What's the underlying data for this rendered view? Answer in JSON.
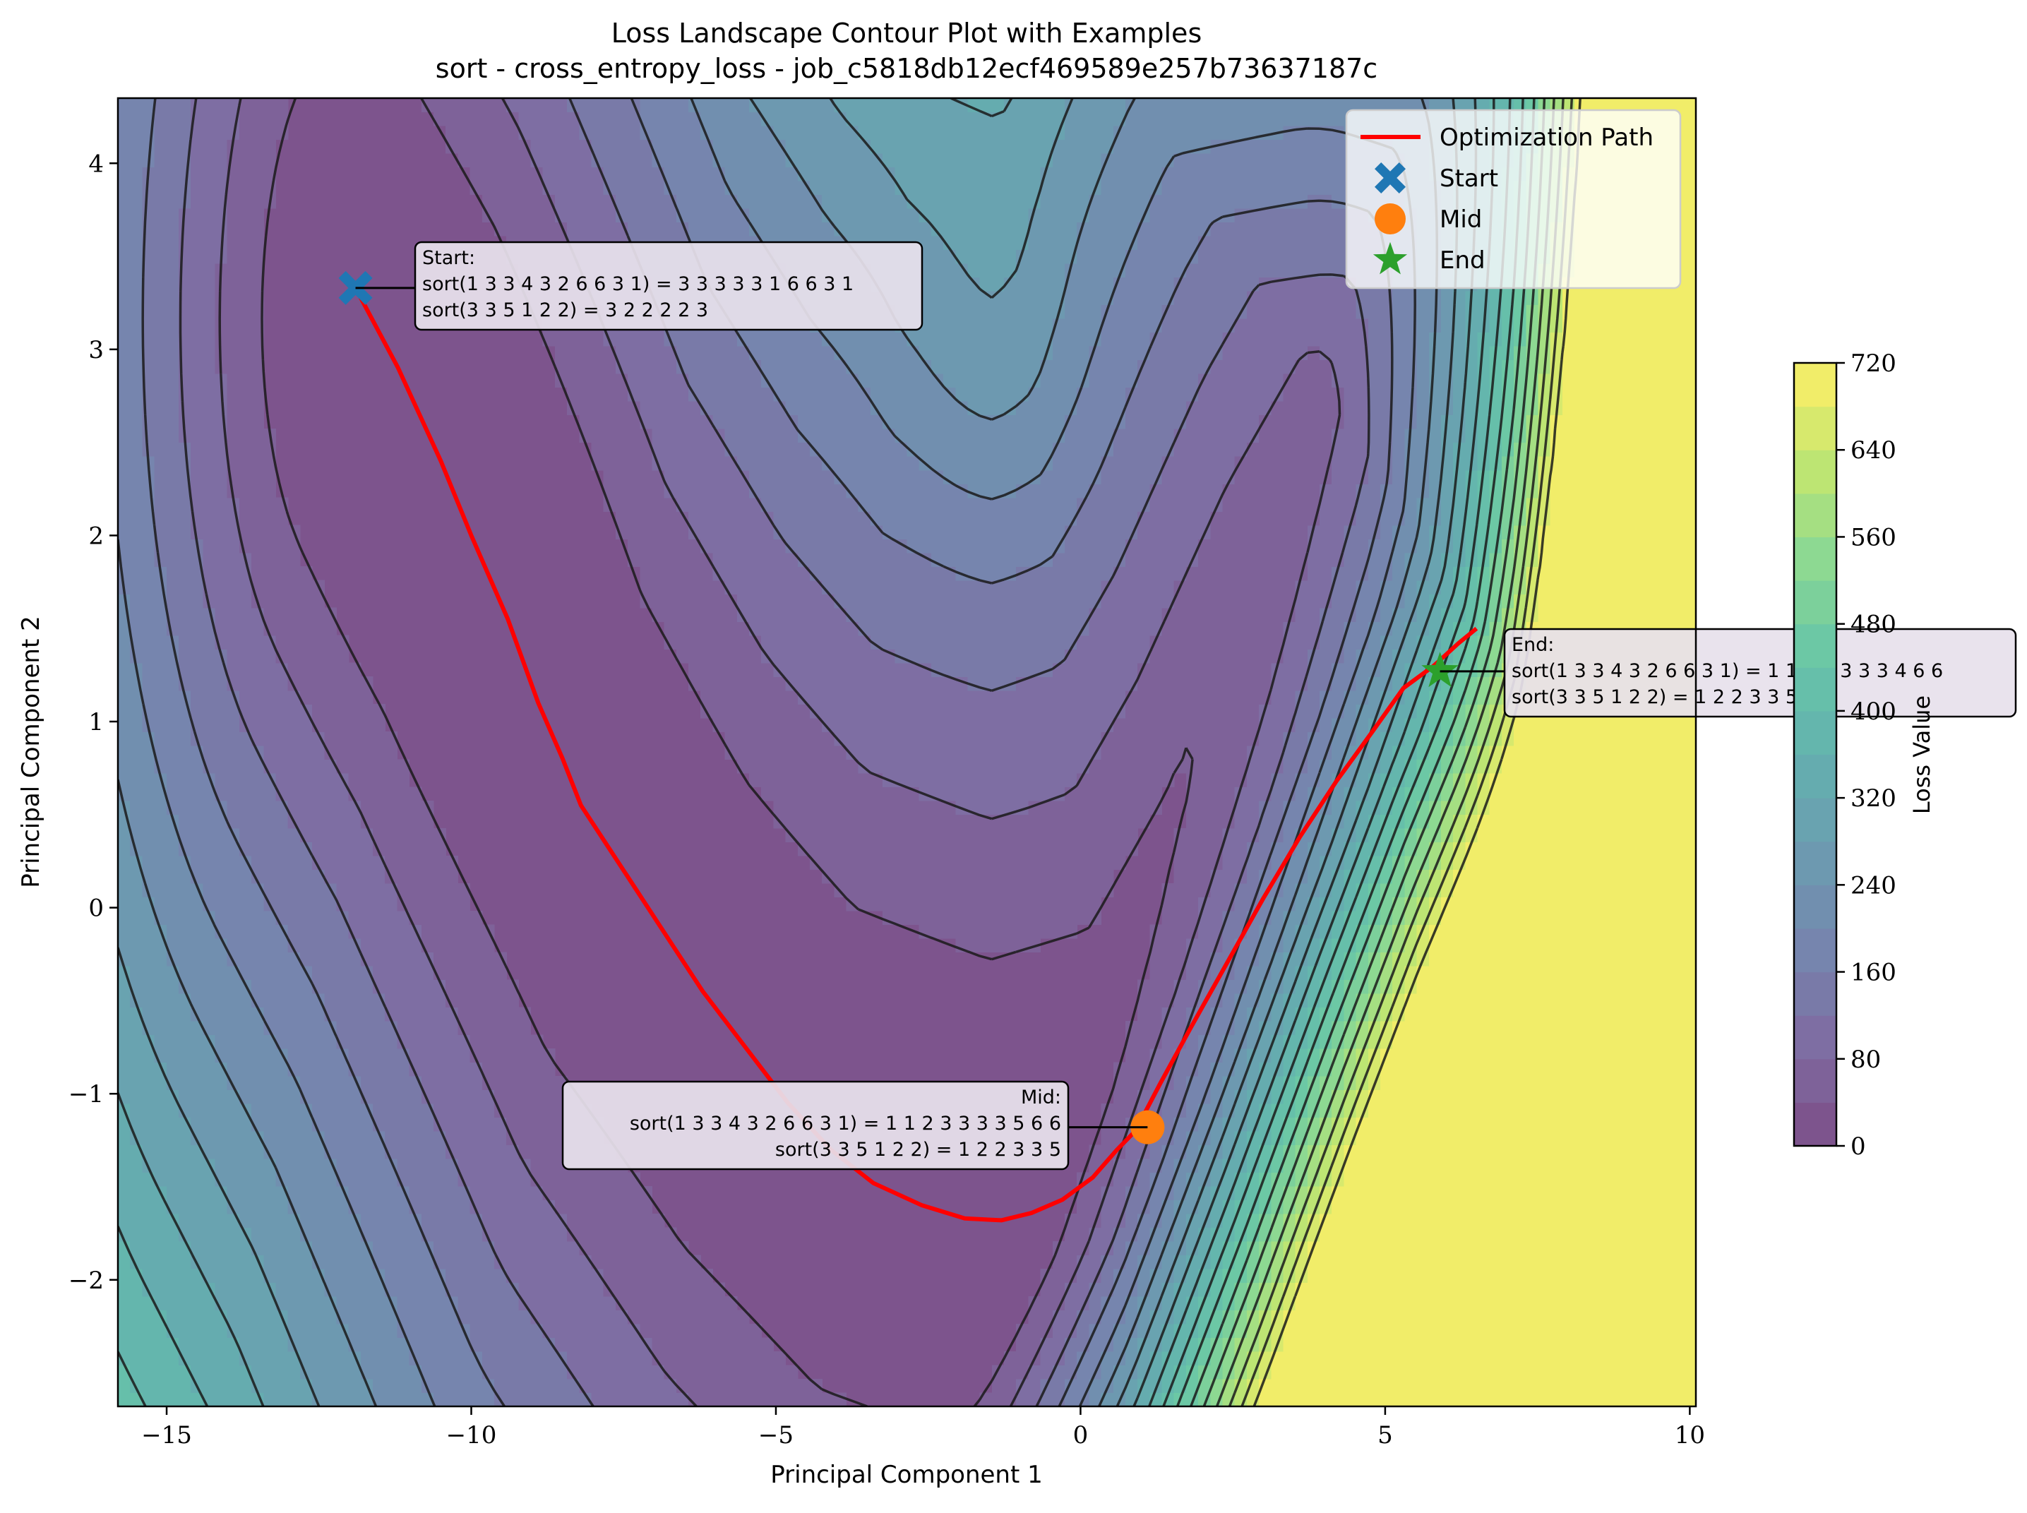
{
  "chart_data": {
    "type": "contour",
    "title": "Loss Landscape Contour Plot with Examples",
    "subtitle": "sort - cross_entropy_loss - job_c5818db12ecf469589e257b73637187c",
    "xlabel": "Principal Component 1",
    "ylabel": "Principal Component 2",
    "xlim": [
      -15.8,
      10.1
    ],
    "ylim": [
      -2.68,
      4.35
    ],
    "xticks": [
      -15,
      -10,
      -5,
      0,
      5,
      10
    ],
    "yticks": [
      -2,
      -1,
      0,
      1,
      2,
      3,
      4
    ],
    "xtick_labels": [
      "−15",
      "−10",
      "−5",
      "0",
      "5",
      "10"
    ],
    "ytick_labels": [
      "−2",
      "−1",
      "0",
      "1",
      "2",
      "3",
      "4"
    ],
    "grid": false,
    "legend_position": "top-right",
    "legend": [
      {
        "label": "Optimization Path",
        "marker": "line",
        "color": "#ff0000"
      },
      {
        "label": "Start",
        "marker": "x",
        "color": "#1f77b4"
      },
      {
        "label": "Mid",
        "marker": "circle",
        "color": "#ff7f0e"
      },
      {
        "label": "End",
        "marker": "star",
        "color": "#2ca02c"
      }
    ],
    "colorbar": {
      "label": "Loss Value",
      "min": 0,
      "max": 720,
      "levels": 18,
      "ticks": [
        0,
        80,
        160,
        240,
        320,
        400,
        480,
        560,
        640,
        720
      ],
      "tick_labels": [
        "0",
        "80",
        "160",
        "240",
        "320",
        "400",
        "480",
        "560",
        "640",
        "720"
      ],
      "colormap": "viridis",
      "alpha": 0.7
    },
    "path": {
      "x": [
        -11.9,
        -11.2,
        -10.5,
        -10.0,
        -9.4,
        -8.9,
        -8.5,
        -8.2,
        -7.8,
        -7.3,
        -6.8,
        -6.2,
        -5.5,
        -4.8,
        -4.1,
        -3.4,
        -2.6,
        -1.9,
        -1.3,
        -0.8,
        -0.3,
        0.2,
        0.6,
        0.9,
        1.3,
        1.8,
        2.4,
        3.0,
        3.6,
        4.2,
        4.8,
        5.3,
        5.8,
        6.2,
        6.5
      ],
      "y": [
        3.33,
        2.9,
        2.4,
        2.0,
        1.55,
        1.1,
        0.8,
        0.55,
        0.35,
        0.1,
        -0.15,
        -0.45,
        -0.75,
        -1.05,
        -1.3,
        -1.48,
        -1.6,
        -1.67,
        -1.68,
        -1.64,
        -1.57,
        -1.45,
        -1.3,
        -1.2,
        -0.95,
        -0.65,
        -0.3,
        0.05,
        0.38,
        0.68,
        0.95,
        1.18,
        1.3,
        1.42,
        1.5
      ]
    },
    "points": [
      {
        "name": "Start",
        "x": -11.9,
        "y": 3.33,
        "marker": "x",
        "color": "#1f77b4",
        "annotation": {
          "title": "Start:",
          "lines": [
            "sort(1 3 3 4 3 2 6 6 3 1) = 3 3 3 3 3 1 6 6 3 1",
            "sort(3 3 5 1 2 2) = 3 2 2 2 2 3"
          ],
          "align": "left"
        }
      },
      {
        "name": "Mid",
        "x": 1.1,
        "y": -1.18,
        "marker": "circle",
        "color": "#ff7f0e",
        "annotation": {
          "title": "Mid:",
          "lines": [
            "sort(1 3 3 4 3 2 6 6 3 1) = 1 1 2 3 3 3 3 5 6 6",
            "sort(3 3 5 1 2 2) = 1 2 2 3 3 5"
          ],
          "align": "right"
        }
      },
      {
        "name": "End",
        "x": 5.9,
        "y": 1.27,
        "marker": "star",
        "color": "#2ca02c",
        "annotation": {
          "title": "End:",
          "lines": [
            "sort(1 3 3 4 3 2 6 6 3 1) = 1 1 2 3 3 3 3 4 6 6",
            "sort(3 3 5 1 2 2) = 1 2 2 3 3 5"
          ],
          "align": "left"
        }
      }
    ]
  }
}
